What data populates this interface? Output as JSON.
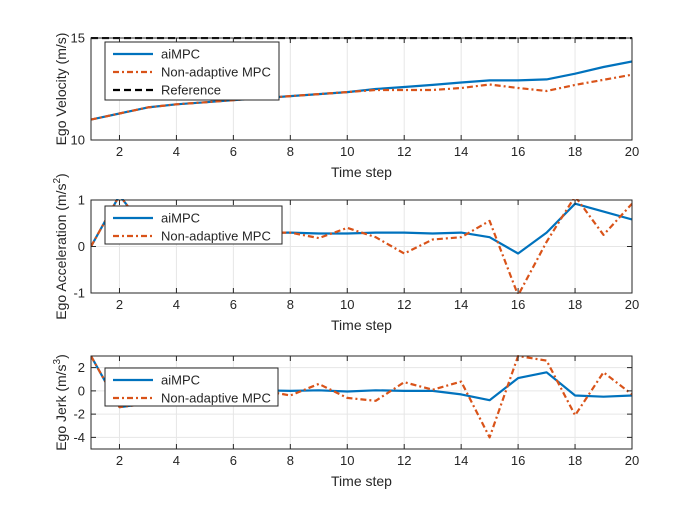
{
  "colors": {
    "aimpc": "#0072BD",
    "nonadaptive": "#D95319",
    "reference": "#000000",
    "grid": "#e6e6e6",
    "axis": "#262626"
  },
  "chart_data": [
    {
      "id": "velocity",
      "type": "line",
      "title": "",
      "xlabel": "Time step",
      "ylabel": "Ego Velocity (m/s)",
      "ylabel_sup": "",
      "ylabel_tail": "",
      "xlim": [
        1,
        20
      ],
      "ylim": [
        10,
        15
      ],
      "xticks": [
        2,
        4,
        6,
        8,
        10,
        12,
        14,
        16,
        18,
        20
      ],
      "yticks": [
        10,
        15
      ],
      "grid": true,
      "legend_position": "top-left",
      "series": [
        {
          "name": "aiMPC",
          "style": "solid",
          "colorKey": "aimpc",
          "x": [
            1,
            2,
            3,
            4,
            5,
            6,
            7,
            8,
            9,
            10,
            11,
            12,
            13,
            14,
            15,
            16,
            17,
            18,
            19,
            20
          ],
          "values": [
            11.0,
            11.3,
            11.6,
            11.75,
            11.85,
            11.95,
            12.05,
            12.15,
            12.25,
            12.35,
            12.5,
            12.6,
            12.7,
            12.82,
            12.92,
            12.92,
            12.97,
            13.25,
            13.58,
            13.85
          ]
        },
        {
          "name": "Non-adaptive MPC",
          "style": "dashdot",
          "colorKey": "nonadaptive",
          "x": [
            1,
            2,
            3,
            4,
            5,
            6,
            7,
            8,
            9,
            10,
            11,
            12,
            13,
            14,
            15,
            16,
            17,
            18,
            19,
            20
          ],
          "values": [
            11.0,
            11.3,
            11.6,
            11.75,
            11.85,
            11.95,
            12.05,
            12.15,
            12.25,
            12.35,
            12.45,
            12.45,
            12.45,
            12.55,
            12.72,
            12.55,
            12.4,
            12.7,
            12.95,
            13.2
          ]
        },
        {
          "name": "Reference",
          "style": "dashed",
          "colorKey": "reference",
          "x": [
            1,
            20
          ],
          "values": [
            15,
            15
          ]
        }
      ]
    },
    {
      "id": "acceleration",
      "type": "line",
      "title": "",
      "xlabel": "Time step",
      "ylabel": "Ego Acceleration (m/s",
      "ylabel_sup": "2",
      "ylabel_tail": ")",
      "xlim": [
        1,
        20
      ],
      "ylim": [
        -1,
        1
      ],
      "xticks": [
        2,
        4,
        6,
        8,
        10,
        12,
        14,
        16,
        18,
        20
      ],
      "yticks": [
        -1,
        0,
        1
      ],
      "grid": true,
      "legend_position": "top-left",
      "series": [
        {
          "name": "aiMPC",
          "style": "solid",
          "colorKey": "aimpc",
          "x": [
            1,
            2,
            3,
            4,
            5,
            6,
            7,
            8,
            9,
            10,
            11,
            12,
            13,
            14,
            15,
            16,
            17,
            18,
            19,
            20
          ],
          "values": [
            0.0,
            1.1,
            0.3,
            0.25,
            0.25,
            0.25,
            0.3,
            0.3,
            0.28,
            0.28,
            0.3,
            0.3,
            0.28,
            0.3,
            0.2,
            -0.15,
            0.3,
            0.92,
            0.75,
            0.58
          ]
        },
        {
          "name": "Non-adaptive MPC",
          "style": "dashdot",
          "colorKey": "nonadaptive",
          "x": [
            1,
            2,
            3,
            4,
            5,
            6,
            7,
            8,
            9,
            10,
            11,
            12,
            13,
            14,
            15,
            16,
            17,
            18,
            19,
            20
          ],
          "values": [
            0.0,
            1.1,
            0.3,
            0.25,
            0.25,
            0.25,
            0.3,
            0.3,
            0.18,
            0.4,
            0.2,
            -0.15,
            0.15,
            0.2,
            0.55,
            -1.05,
            0.1,
            1.08,
            0.25,
            0.92
          ]
        }
      ]
    },
    {
      "id": "jerk",
      "type": "line",
      "title": "",
      "xlabel": "Time step",
      "ylabel": "Ego Jerk (m/s",
      "ylabel_sup": "3",
      "ylabel_tail": ")",
      "xlim": [
        1,
        20
      ],
      "ylim": [
        -5,
        3
      ],
      "xticks": [
        2,
        4,
        6,
        8,
        10,
        12,
        14,
        16,
        18,
        20
      ],
      "yticks": [
        -4,
        -2,
        0,
        2
      ],
      "grid": true,
      "legend_position": "top-left",
      "series": [
        {
          "name": "aiMPC",
          "style": "solid",
          "colorKey": "aimpc",
          "x": [
            1,
            2,
            3,
            4,
            5,
            6,
            7,
            8,
            9,
            10,
            11,
            12,
            13,
            14,
            15,
            16,
            17,
            18,
            19,
            20
          ],
          "values": [
            3.0,
            -1.4,
            -1.1,
            -0.1,
            0.0,
            0.05,
            0.05,
            0.0,
            0.05,
            -0.05,
            0.05,
            0.0,
            0.0,
            -0.3,
            -0.8,
            1.1,
            1.6,
            -0.4,
            -0.5,
            -0.4
          ]
        },
        {
          "name": "Non-adaptive MPC",
          "style": "dashdot",
          "colorKey": "nonadaptive",
          "x": [
            1,
            2,
            3,
            4,
            5,
            6,
            7,
            8,
            9,
            10,
            11,
            12,
            13,
            14,
            15,
            16,
            17,
            18,
            19,
            20
          ],
          "values": [
            3.0,
            -1.4,
            -1.1,
            -0.1,
            0.0,
            0.05,
            0.05,
            -0.4,
            0.6,
            -0.6,
            -0.85,
            0.75,
            0.1,
            0.8,
            -4.0,
            3.0,
            2.6,
            -2.1,
            1.6,
            -0.3
          ]
        }
      ]
    }
  ]
}
